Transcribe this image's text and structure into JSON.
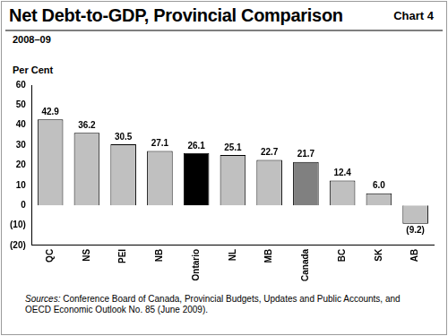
{
  "chart_data": {
    "type": "bar",
    "title": "Net Debt-to-GDP, Provincial Comparison",
    "subtitle": "2008–09",
    "annotations": [
      "Chart 4"
    ],
    "ylabel": "Per Cent",
    "source": "Sources: Conference Board of Canada, Provincial Budgets, Updates and Public Accounts, and OECD Economic Outlook No. 85 (June 2009).",
    "categories": [
      "QC",
      "NS",
      "PEI",
      "NB",
      "Ontario",
      "NL",
      "MB",
      "Canada",
      "BC",
      "SK",
      "AB"
    ],
    "values": [
      42.9,
      36.2,
      30.5,
      27.1,
      26.1,
      25.1,
      22.7,
      21.7,
      12.4,
      6.0,
      -9.2
    ],
    "value_labels": [
      "42.9",
      "36.2",
      "30.5",
      "27.1",
      "26.1",
      "25.1",
      "22.7",
      "21.7",
      "12.4",
      "6.0",
      "(9.2)"
    ],
    "colors": [
      "#c0c0c0",
      "#c0c0c0",
      "#c0c0c0",
      "#c0c0c0",
      "#000000",
      "#c0c0c0",
      "#c0c0c0",
      "#808080",
      "#c0c0c0",
      "#c0c0c0",
      "#c0c0c0"
    ],
    "ylim": [
      -20,
      60
    ],
    "yticks": [
      {
        "value": -20,
        "label": "(20)"
      },
      {
        "value": -10,
        "label": "(10)"
      },
      0,
      10,
      20,
      30,
      40,
      50,
      60
    ],
    "grid": false,
    "data_labels": true
  }
}
